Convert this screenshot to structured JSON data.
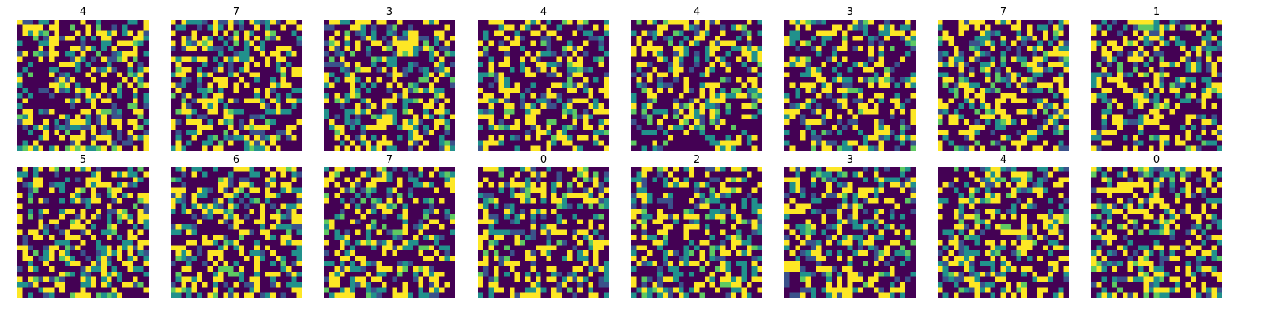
{
  "chart_data": {
    "type": "heatmap",
    "layout": {
      "rows": 2,
      "cols": 8
    },
    "grid_size": 25,
    "colormap": "viridis",
    "palette": [
      "#440154",
      "#3b528b",
      "#21918c",
      "#5ec962",
      "#fde725"
    ],
    "axes": "off",
    "titles": [
      "4",
      "7",
      "3",
      "4",
      "4",
      "3",
      "7",
      "1",
      "5",
      "6",
      "7",
      "0",
      "2",
      "3",
      "4",
      "0"
    ]
  }
}
